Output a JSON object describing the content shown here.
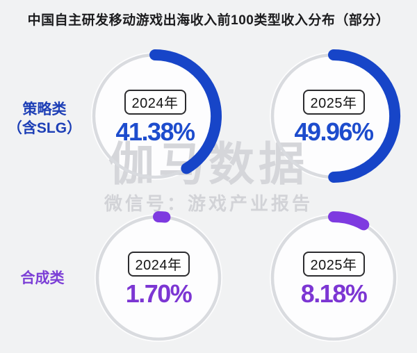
{
  "title": "中国自主研发移动游戏出海收入前100类型收入分布（部分）",
  "watermark": {
    "brand": "伽马数据",
    "wechat_line": "微信号：游戏产业报告"
  },
  "colors": {
    "background": "#f1f2f3",
    "ring_gray": "#d9dbdf",
    "blue_arc": "#1745c8",
    "blue_text": "#1d4ccd",
    "blue_label": "#1d3fb6",
    "purple_arc": "#7e3ae0",
    "purple_text": "#7c36d3",
    "purple_label": "#7c3fd6"
  },
  "row_labels": [
    {
      "line1": "策略类",
      "line2": "（含SLG）",
      "color": "#1d3fb6"
    },
    {
      "line1": "合成类",
      "line2": "",
      "color": "#7c3fd6"
    }
  ],
  "gauges": [
    {
      "year": "2024年",
      "display": "41.38%",
      "value": 41.38,
      "arc_color": "#1745c8",
      "text_color": "#1d4ccd"
    },
    {
      "year": "2025年",
      "display": "49.96%",
      "value": 49.96,
      "arc_color": "#1745c8",
      "text_color": "#1d4ccd"
    },
    {
      "year": "2024年",
      "display": "1.70%",
      "value": 1.7,
      "arc_color": "#7e3ae0",
      "text_color": "#7c36d3"
    },
    {
      "year": "2025年",
      "display": "8.18%",
      "value": 8.18,
      "arc_color": "#7e3ae0",
      "text_color": "#7c36d3"
    }
  ],
  "chart_data": [
    {
      "type": "pie",
      "title": "策略类（含SLG）",
      "unit": "%",
      "categories": [
        "2024年",
        "2025年"
      ],
      "values": [
        41.38,
        49.96
      ],
      "style": "donut-gauge, arc starts at 12 o'clock clockwise, rounded caps",
      "color": "#1745c8"
    },
    {
      "type": "pie",
      "title": "合成类",
      "unit": "%",
      "categories": [
        "2024年",
        "2025年"
      ],
      "values": [
        1.7,
        8.18
      ],
      "style": "donut-gauge, arc starts at 12 o'clock clockwise, rounded caps",
      "color": "#7e3ae0"
    }
  ]
}
